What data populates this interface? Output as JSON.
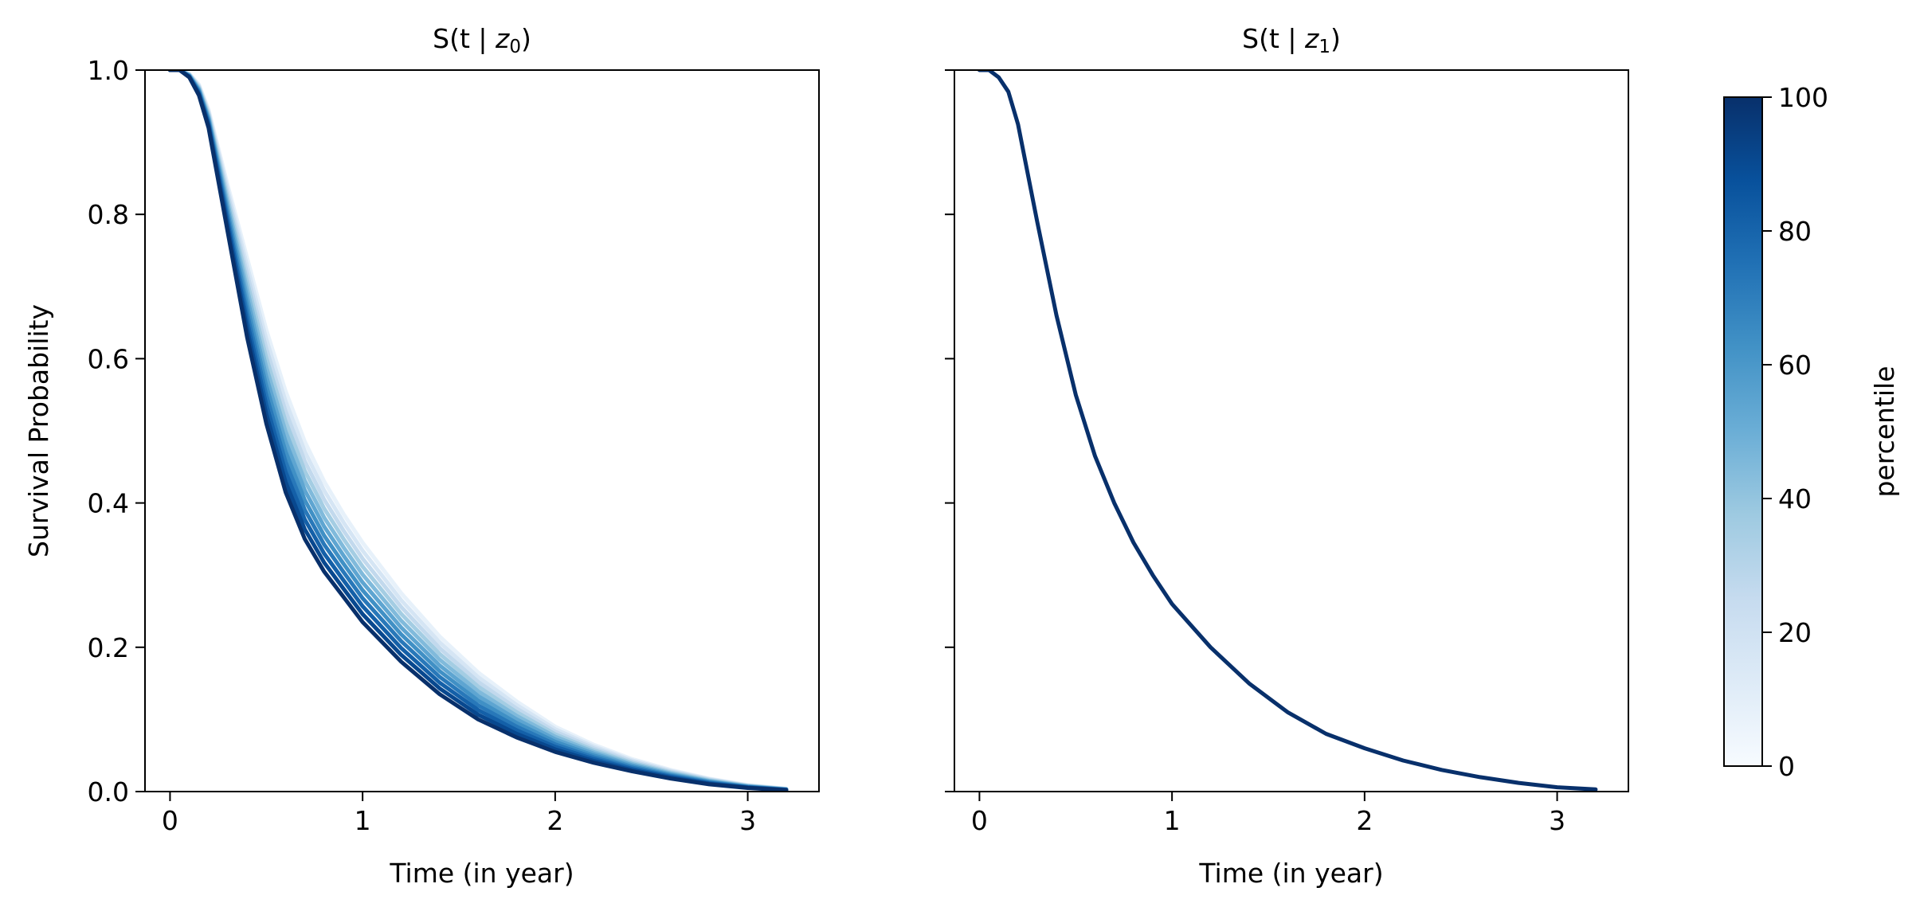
{
  "chart_data": [
    {
      "type": "line",
      "title_prefix": "S(t | ",
      "title_var": "z",
      "title_sub": "0",
      "title_suffix": ")",
      "xlabel": "Time (in year)",
      "ylabel": "Survival Probability",
      "xlim": [
        -0.13,
        3.37
      ],
      "ylim": [
        0.0,
        1.0
      ],
      "xticks": [
        0,
        1,
        2,
        3
      ],
      "yticks": [
        0.0,
        0.2,
        0.4,
        0.6,
        0.8,
        1.0
      ],
      "ytick_labels": [
        "0.0",
        "0.2",
        "0.4",
        "0.6",
        "0.8",
        "1.0"
      ],
      "colormap": "Blues",
      "x": [
        0.0,
        0.05,
        0.1,
        0.15,
        0.2,
        0.3,
        0.4,
        0.5,
        0.6,
        0.7,
        0.8,
        0.9,
        1.0,
        1.2,
        1.4,
        1.6,
        1.8,
        2.0,
        2.2,
        2.4,
        2.6,
        2.8,
        3.0,
        3.2
      ],
      "band": {
        "low_percentile": [
          1.0,
          1.0,
          0.99,
          0.965,
          0.92,
          0.775,
          0.63,
          0.51,
          0.415,
          0.35,
          0.305,
          0.27,
          0.235,
          0.18,
          0.135,
          0.1,
          0.075,
          0.055,
          0.04,
          0.028,
          0.018,
          0.01,
          0.005,
          0.002
        ],
        "high_percentile": [
          1.0,
          1.0,
          0.995,
          0.98,
          0.945,
          0.84,
          0.74,
          0.64,
          0.555,
          0.485,
          0.43,
          0.385,
          0.345,
          0.275,
          0.215,
          0.165,
          0.125,
          0.09,
          0.065,
          0.045,
          0.03,
          0.018,
          0.009,
          0.004
        ]
      },
      "percentile_steps": 11
    },
    {
      "type": "line",
      "title_prefix": "S(t | ",
      "title_var": "z",
      "title_sub": "1",
      "title_suffix": ")",
      "xlabel": "Time (in year)",
      "ylabel": "",
      "xlim": [
        -0.13,
        3.37
      ],
      "ylim": [
        0.0,
        1.0
      ],
      "xticks": [
        0,
        1,
        2,
        3
      ],
      "yticks": [
        0.0,
        0.2,
        0.4,
        0.6,
        0.8,
        1.0
      ],
      "colormap": "Blues",
      "x": [
        0.0,
        0.05,
        0.1,
        0.15,
        0.2,
        0.3,
        0.4,
        0.5,
        0.6,
        0.7,
        0.8,
        0.9,
        1.0,
        1.2,
        1.4,
        1.6,
        1.8,
        2.0,
        2.2,
        2.4,
        2.6,
        2.8,
        3.0,
        3.2
      ],
      "series": [
        {
          "values": [
            1.0,
            1.0,
            0.99,
            0.97,
            0.925,
            0.79,
            0.66,
            0.55,
            0.465,
            0.4,
            0.345,
            0.3,
            0.26,
            0.2,
            0.15,
            0.11,
            0.08,
            0.06,
            0.043,
            0.03,
            0.02,
            0.012,
            0.006,
            0.003
          ],
          "color": "#08306b"
        }
      ]
    }
  ],
  "colorbar": {
    "label": "percentile",
    "range": [
      0,
      100
    ],
    "ticks": [
      0,
      20,
      40,
      60,
      80,
      100
    ],
    "colormap": "Blues",
    "colors": [
      "#f7fbff",
      "#deebf7",
      "#c6dbef",
      "#9ecae1",
      "#6baed6",
      "#4292c6",
      "#2171b5",
      "#08519c",
      "#08306b"
    ]
  }
}
